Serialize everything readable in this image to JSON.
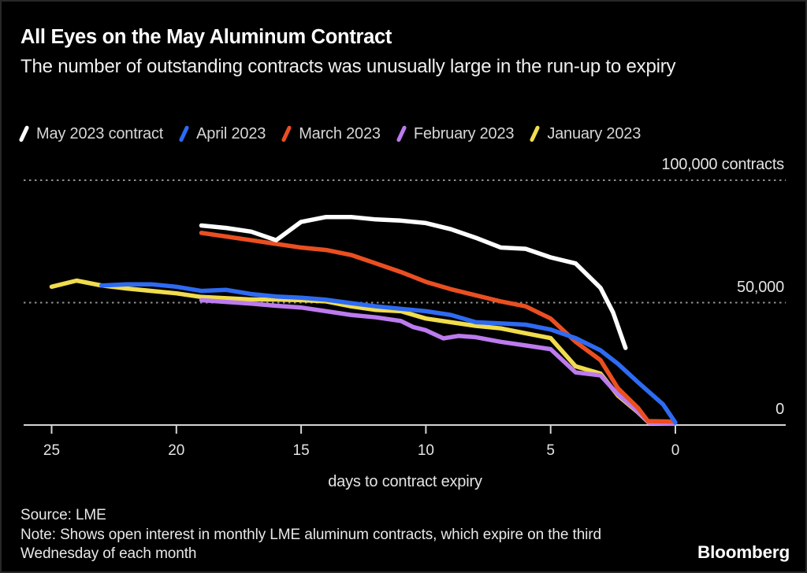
{
  "header": {
    "title": "All Eyes on the May Aluminum Contract",
    "subtitle": "The number of outstanding contracts was unusually large in the run-up to expiry"
  },
  "footer": {
    "source": "Source: LME",
    "note": "Note: Shows open interest in monthly LME aluminum contracts, which expire on the third Wednesday of each month",
    "brand": "Bloomberg"
  },
  "colors": {
    "background": "#000000",
    "title_text": "#ffffff",
    "label_text": "#e4e4e4",
    "legend_text": "#d6d6d6",
    "gridline": "#909090",
    "axis": "#d4d4d4"
  },
  "chart_data": {
    "type": "line",
    "title": "All Eyes on the May Aluminum Contract",
    "subtitle": "The number of outstanding contracts was unusually large in the run-up to expiry",
    "legend_position": "top",
    "grid": "horizontal-dotted",
    "x_axis": {
      "label": "days to contract expiry",
      "ticks": [
        25,
        20,
        15,
        10,
        5,
        0
      ],
      "range": [
        25,
        0
      ],
      "reversed": true
    },
    "y_axis": {
      "unit": "contracts",
      "range": [
        0,
        100000
      ],
      "gridlines": [
        {
          "value": 100000,
          "label": "100,000 contracts",
          "dotted": true
        },
        {
          "value": 50000,
          "label": "50,000",
          "dotted": true
        },
        {
          "value": 0,
          "label": "0",
          "dotted": false
        }
      ]
    },
    "series": [
      {
        "name": "May 2023 contract",
        "color": "#ffffff",
        "draw_order": 5,
        "points": [
          [
            19,
            81500
          ],
          [
            18,
            80500
          ],
          [
            17,
            79000
          ],
          [
            16,
            75500
          ],
          [
            15,
            83000
          ],
          [
            14,
            85000
          ],
          [
            13,
            85000
          ],
          [
            12,
            84000
          ],
          [
            11,
            83500
          ],
          [
            10,
            82500
          ],
          [
            9,
            80000
          ],
          [
            8,
            76500
          ],
          [
            7,
            72500
          ],
          [
            6,
            72000
          ],
          [
            5,
            68500
          ],
          [
            4,
            66000
          ],
          [
            3,
            56000
          ],
          [
            2.5,
            46000
          ],
          [
            2,
            31500
          ]
        ]
      },
      {
        "name": "April 2023",
        "color": "#2e6bf3",
        "draw_order": 4,
        "points": [
          [
            23,
            57000
          ],
          [
            22,
            57500
          ],
          [
            21,
            57500
          ],
          [
            20,
            56500
          ],
          [
            19,
            54800
          ],
          [
            18,
            55200
          ],
          [
            17,
            53500
          ],
          [
            16,
            52500
          ],
          [
            15,
            52000
          ],
          [
            14,
            51200
          ],
          [
            13,
            49800
          ],
          [
            12,
            48500
          ],
          [
            11,
            47500
          ],
          [
            10,
            46500
          ],
          [
            9,
            45000
          ],
          [
            8,
            42000
          ],
          [
            7,
            41500
          ],
          [
            6,
            41000
          ],
          [
            5,
            39000
          ],
          [
            4,
            35500
          ],
          [
            3,
            30500
          ],
          [
            2.3,
            25000
          ],
          [
            1.5,
            17500
          ],
          [
            1,
            13000
          ],
          [
            0.5,
            8500
          ],
          [
            0,
            1000
          ]
        ]
      },
      {
        "name": "March 2023",
        "color": "#ea4f21",
        "draw_order": 3,
        "points": [
          [
            19,
            78500
          ],
          [
            18,
            77000
          ],
          [
            17,
            75500
          ],
          [
            16,
            74000
          ],
          [
            15,
            72500
          ],
          [
            14,
            71500
          ],
          [
            13,
            69500
          ],
          [
            12,
            66000
          ],
          [
            11,
            62500
          ],
          [
            10,
            58500
          ],
          [
            9,
            55500
          ],
          [
            8,
            53000
          ],
          [
            7,
            50500
          ],
          [
            6,
            48500
          ],
          [
            5,
            43500
          ],
          [
            4,
            34000
          ],
          [
            3,
            26500
          ],
          [
            2.3,
            15000
          ],
          [
            1.5,
            7000
          ],
          [
            1.1,
            1600
          ],
          [
            0.05,
            1400
          ]
        ]
      },
      {
        "name": "February 2023",
        "color": "#bc7bee",
        "draw_order": 2,
        "points": [
          [
            19,
            51000
          ],
          [
            18,
            50300
          ],
          [
            17,
            49600
          ],
          [
            16,
            48700
          ],
          [
            15,
            48000
          ],
          [
            14,
            46500
          ],
          [
            13,
            45000
          ],
          [
            12,
            44000
          ],
          [
            11,
            42500
          ],
          [
            10.5,
            40000
          ],
          [
            10,
            38700
          ],
          [
            9.3,
            35400
          ],
          [
            8.7,
            36400
          ],
          [
            8,
            35900
          ],
          [
            7,
            34000
          ],
          [
            6,
            32500
          ],
          [
            5,
            31000
          ],
          [
            4,
            21500
          ],
          [
            3,
            20300
          ],
          [
            2.3,
            12500
          ],
          [
            1.5,
            5500
          ],
          [
            1.05,
            900
          ],
          [
            0.05,
            600
          ]
        ]
      },
      {
        "name": "January 2023",
        "color": "#f0dc4e",
        "draw_order": 1,
        "points": [
          [
            25,
            56500
          ],
          [
            24,
            59000
          ],
          [
            23,
            57000
          ],
          [
            22,
            55800
          ],
          [
            21,
            54800
          ],
          [
            20,
            53800
          ],
          [
            19,
            52300
          ],
          [
            18,
            51800
          ],
          [
            17,
            51300
          ],
          [
            16,
            51300
          ],
          [
            15,
            51000
          ],
          [
            14,
            50500
          ],
          [
            13,
            48500
          ],
          [
            12,
            47000
          ],
          [
            11,
            46500
          ],
          [
            10,
            43500
          ],
          [
            9,
            42000
          ],
          [
            8,
            40500
          ],
          [
            7,
            39500
          ],
          [
            6,
            37500
          ],
          [
            5,
            35500
          ],
          [
            4,
            24000
          ],
          [
            3,
            21000
          ],
          [
            2.3,
            12000
          ],
          [
            1.5,
            5200
          ],
          [
            1.05,
            800
          ],
          [
            0.05,
            500
          ]
        ]
      }
    ]
  }
}
